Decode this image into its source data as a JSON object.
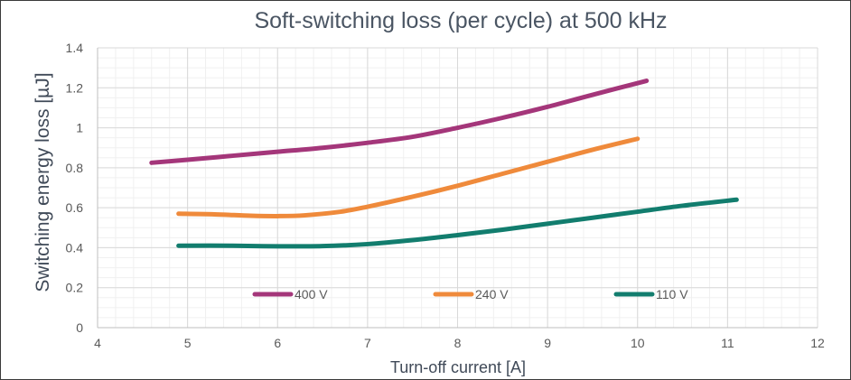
{
  "chart_data": {
    "type": "line",
    "title": "Soft-switching loss (per cycle) at 500 kHz",
    "xlabel": "Turn-off current [A]",
    "ylabel": "Switching energy loss [µJ]",
    "xlim": [
      4,
      12
    ],
    "ylim": [
      0,
      1.4
    ],
    "x_ticks": [
      4,
      5,
      6,
      7,
      8,
      9,
      10,
      11,
      12
    ],
    "y_ticks": [
      0,
      0.2,
      0.4,
      0.6,
      0.8,
      1,
      1.2,
      1.4
    ],
    "grid": true,
    "legend_position": "inside-bottom",
    "series": [
      {
        "name": "400 V",
        "color": "#a4367a",
        "x": [
          4.6,
          5.0,
          5.5,
          6.0,
          6.5,
          7.0,
          7.5,
          8.0,
          8.5,
          9.0,
          9.5,
          10.1
        ],
        "y": [
          0.825,
          0.84,
          0.86,
          0.88,
          0.9,
          0.925,
          0.955,
          1.0,
          1.05,
          1.105,
          1.165,
          1.235
        ]
      },
      {
        "name": "240 V",
        "color": "#ef8a3b",
        "x": [
          4.9,
          5.3,
          5.7,
          6.0,
          6.3,
          6.7,
          7.0,
          7.5,
          8.0,
          8.5,
          9.0,
          9.5,
          10.0
        ],
        "y": [
          0.57,
          0.567,
          0.56,
          0.558,
          0.562,
          0.58,
          0.605,
          0.655,
          0.71,
          0.77,
          0.83,
          0.89,
          0.945
        ]
      },
      {
        "name": "110 V",
        "color": "#127d6e",
        "x": [
          4.9,
          5.5,
          6.0,
          6.5,
          7.0,
          7.5,
          8.0,
          8.5,
          9.0,
          9.5,
          10.0,
          10.5,
          11.1
        ],
        "y": [
          0.41,
          0.41,
          0.407,
          0.408,
          0.418,
          0.438,
          0.463,
          0.49,
          0.52,
          0.55,
          0.58,
          0.61,
          0.64
        ]
      }
    ]
  }
}
